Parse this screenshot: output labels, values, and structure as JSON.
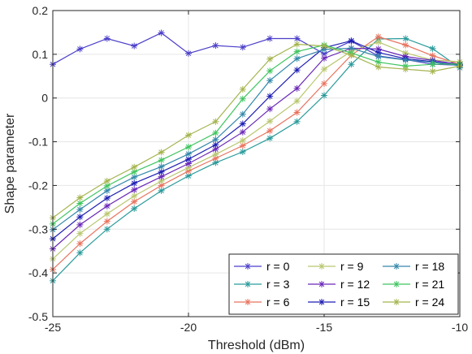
{
  "chart_data": {
    "type": "line",
    "xlabel": "Threshold (dBm)",
    "ylabel": "Shape parameter",
    "xlim": [
      -25,
      -10
    ],
    "ylim": [
      -0.5,
      0.2
    ],
    "xticks": [
      -25,
      -20,
      -15,
      -10
    ],
    "xtick_labels": [
      "-25",
      "-20",
      "-15",
      "-10"
    ],
    "yticks": [
      -0.5,
      -0.4,
      -0.3,
      -0.2,
      -0.1,
      0,
      0.1,
      0.2
    ],
    "ytick_labels": [
      "-0.5",
      "-0.4",
      "-0.3",
      "-0.2",
      "-0.1",
      "0",
      "0.1",
      "0.2"
    ],
    "grid": true,
    "legend_position": "bottom-right",
    "marker": "asterisk",
    "x": [
      -25,
      -24,
      -23,
      -22,
      -21,
      -20,
      -19,
      -18,
      -17,
      -16,
      -15,
      -14,
      -13,
      -12,
      -11,
      -10
    ],
    "series": [
      {
        "name": "r = 0",
        "color": "#4b3fc9",
        "values": [
          0.077,
          0.112,
          0.136,
          0.119,
          0.149,
          0.102,
          0.12,
          0.116,
          0.136,
          0.136,
          0.101,
          0.13,
          0.096,
          0.088,
          0.077,
          0.075
        ]
      },
      {
        "name": "r = 3",
        "color": "#2a9a9a",
        "values": [
          -0.418,
          -0.354,
          -0.3,
          -0.253,
          -0.212,
          -0.178,
          -0.148,
          -0.123,
          -0.092,
          -0.054,
          0.006,
          0.077,
          0.135,
          0.136,
          0.113,
          0.069
        ]
      },
      {
        "name": "r = 6",
        "color": "#e8735e",
        "values": [
          -0.392,
          -0.333,
          -0.282,
          -0.237,
          -0.2,
          -0.167,
          -0.138,
          -0.109,
          -0.075,
          -0.033,
          0.033,
          0.098,
          0.14,
          0.121,
          0.097,
          0.077
        ]
      },
      {
        "name": "r = 9",
        "color": "#b9c76f",
        "values": [
          -0.368,
          -0.31,
          -0.265,
          -0.224,
          -0.19,
          -0.159,
          -0.129,
          -0.097,
          -0.053,
          -0.007,
          0.066,
          0.107,
          0.128,
          0.103,
          0.087,
          0.083
        ]
      },
      {
        "name": "r = 12",
        "color": "#6a28b8",
        "values": [
          -0.345,
          -0.29,
          -0.247,
          -0.21,
          -0.18,
          -0.15,
          -0.117,
          -0.078,
          -0.025,
          0.022,
          0.091,
          0.114,
          0.112,
          0.095,
          0.086,
          0.077
        ]
      },
      {
        "name": "r = 15",
        "color": "#1e1eb4",
        "values": [
          -0.322,
          -0.272,
          -0.229,
          -0.195,
          -0.169,
          -0.14,
          -0.107,
          -0.059,
          0.004,
          0.064,
          0.115,
          0.131,
          0.104,
          0.09,
          0.083,
          0.075
        ]
      },
      {
        "name": "r = 18",
        "color": "#3388aa",
        "values": [
          -0.301,
          -0.255,
          -0.212,
          -0.181,
          -0.157,
          -0.128,
          -0.095,
          -0.037,
          0.04,
          0.09,
          0.111,
          0.114,
          0.095,
          0.087,
          0.082,
          0.074
        ]
      },
      {
        "name": "r = 21",
        "color": "#3fc55f",
        "values": [
          -0.288,
          -0.241,
          -0.201,
          -0.169,
          -0.142,
          -0.112,
          -0.08,
          -0.002,
          0.062,
          0.106,
          0.121,
          0.103,
          0.082,
          0.073,
          0.077,
          0.078
        ]
      },
      {
        "name": "r = 24",
        "color": "#a5b44e",
        "values": [
          -0.274,
          -0.228,
          -0.19,
          -0.158,
          -0.124,
          -0.085,
          -0.054,
          0.02,
          0.089,
          0.123,
          0.119,
          0.098,
          0.071,
          0.066,
          0.061,
          0.073
        ]
      }
    ]
  }
}
